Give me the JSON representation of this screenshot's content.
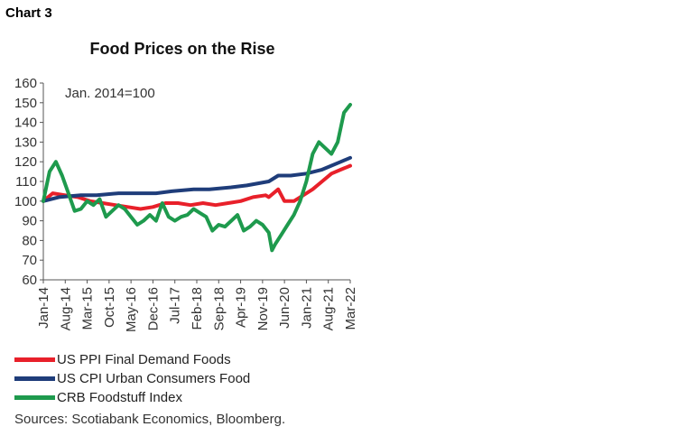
{
  "label": "Chart 3",
  "title": "Food Prices on the Rise",
  "note": "Jan. 2014=100",
  "source": "Sources: Scotiabank Economics, Bloomberg.",
  "chart_data": {
    "type": "line",
    "title": "Food Prices on the Rise",
    "annotation": "Jan. 2014=100",
    "ylim": [
      60,
      160
    ],
    "yticks": [
      60,
      70,
      80,
      90,
      100,
      110,
      120,
      130,
      140,
      150,
      160
    ],
    "xlim": [
      "2014-01",
      "2022-03"
    ],
    "xticks": [
      "Jan-14",
      "Aug-14",
      "Mar-15",
      "Oct-15",
      "May-16",
      "Dec-16",
      "Jul-17",
      "Feb-18",
      "Sep-18",
      "Apr-19",
      "Nov-19",
      "Jun-20",
      "Jan-21",
      "Aug-21",
      "Mar-22"
    ],
    "grid": false,
    "legend_position": "bottom",
    "series": [
      {
        "name": "US PPI Final Demand Foods",
        "color": "#e8202a",
        "points": [
          [
            "2014-01",
            100
          ],
          [
            "2014-04",
            104
          ],
          [
            "2014-08",
            103
          ],
          [
            "2014-12",
            102
          ],
          [
            "2015-04",
            100
          ],
          [
            "2015-08",
            99
          ],
          [
            "2015-12",
            98
          ],
          [
            "2016-04",
            97
          ],
          [
            "2016-08",
            96
          ],
          [
            "2016-12",
            97
          ],
          [
            "2017-04",
            99
          ],
          [
            "2017-08",
            99
          ],
          [
            "2017-12",
            98
          ],
          [
            "2018-04",
            99
          ],
          [
            "2018-08",
            98
          ],
          [
            "2018-12",
            99
          ],
          [
            "2019-04",
            100
          ],
          [
            "2019-08",
            102
          ],
          [
            "2019-12",
            103
          ],
          [
            "2020-01",
            102
          ],
          [
            "2020-04",
            106
          ],
          [
            "2020-06",
            100
          ],
          [
            "2020-09",
            100
          ],
          [
            "2020-12",
            103
          ],
          [
            "2021-03",
            106
          ],
          [
            "2021-06",
            110
          ],
          [
            "2021-09",
            114
          ],
          [
            "2021-12",
            116
          ],
          [
            "2022-03",
            118
          ]
        ]
      },
      {
        "name": "US CPI Urban Consumers Food",
        "color": "#1f3d7a",
        "points": [
          [
            "2014-01",
            100
          ],
          [
            "2014-06",
            102
          ],
          [
            "2015-01",
            103
          ],
          [
            "2015-06",
            103
          ],
          [
            "2016-01",
            104
          ],
          [
            "2016-06",
            104
          ],
          [
            "2017-01",
            104
          ],
          [
            "2017-06",
            105
          ],
          [
            "2018-01",
            106
          ],
          [
            "2018-06",
            106
          ],
          [
            "2019-01",
            107
          ],
          [
            "2019-06",
            108
          ],
          [
            "2020-01",
            110
          ],
          [
            "2020-04",
            113
          ],
          [
            "2020-08",
            113
          ],
          [
            "2021-01",
            114
          ],
          [
            "2021-06",
            116
          ],
          [
            "2021-12",
            120
          ],
          [
            "2022-03",
            122
          ]
        ]
      },
      {
        "name": "CRB Foodstuff Index",
        "color": "#1e9a4d",
        "points": [
          [
            "2014-01",
            100
          ],
          [
            "2014-03",
            115
          ],
          [
            "2014-05",
            120
          ],
          [
            "2014-07",
            113
          ],
          [
            "2014-09",
            104
          ],
          [
            "2014-11",
            95
          ],
          [
            "2015-01",
            96
          ],
          [
            "2015-03",
            100
          ],
          [
            "2015-05",
            98
          ],
          [
            "2015-07",
            101
          ],
          [
            "2015-09",
            92
          ],
          [
            "2015-11",
            95
          ],
          [
            "2016-01",
            98
          ],
          [
            "2016-03",
            96
          ],
          [
            "2016-05",
            92
          ],
          [
            "2016-07",
            88
          ],
          [
            "2016-09",
            90
          ],
          [
            "2016-11",
            93
          ],
          [
            "2017-01",
            90
          ],
          [
            "2017-03",
            99
          ],
          [
            "2017-05",
            92
          ],
          [
            "2017-07",
            90
          ],
          [
            "2017-09",
            92
          ],
          [
            "2017-11",
            93
          ],
          [
            "2018-01",
            96
          ],
          [
            "2018-03",
            94
          ],
          [
            "2018-05",
            92
          ],
          [
            "2018-07",
            85
          ],
          [
            "2018-09",
            88
          ],
          [
            "2018-11",
            87
          ],
          [
            "2019-01",
            90
          ],
          [
            "2019-03",
            93
          ],
          [
            "2019-05",
            85
          ],
          [
            "2019-07",
            87
          ],
          [
            "2019-09",
            90
          ],
          [
            "2019-11",
            88
          ],
          [
            "2020-01",
            84
          ],
          [
            "2020-02",
            75
          ],
          [
            "2020-03",
            78
          ],
          [
            "2020-05",
            83
          ],
          [
            "2020-07",
            88
          ],
          [
            "2020-09",
            93
          ],
          [
            "2020-11",
            100
          ],
          [
            "2021-01",
            110
          ],
          [
            "2021-03",
            124
          ],
          [
            "2021-05",
            130
          ],
          [
            "2021-07",
            127
          ],
          [
            "2021-09",
            124
          ],
          [
            "2021-11",
            130
          ],
          [
            "2022-01",
            145
          ],
          [
            "2022-03",
            149
          ]
        ]
      }
    ]
  }
}
